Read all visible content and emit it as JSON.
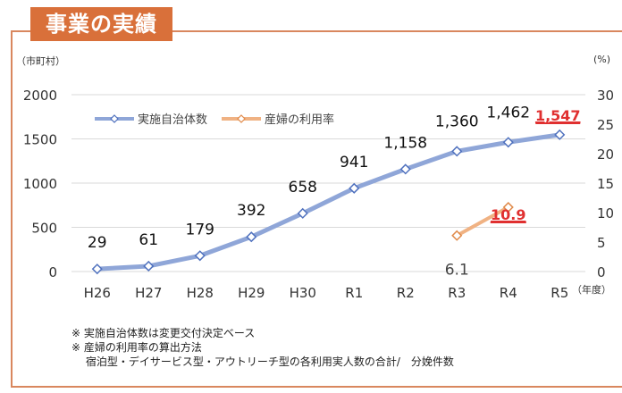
{
  "title": "事業の実績",
  "left_unit": "（市町村）",
  "right_unit": "(%)",
  "x_unit": "（年度）",
  "notes": [
    "※ 実施自治体数は変更交付決定ベース",
    "※ 産婦の利用率の算出方法",
    "　 宿泊型・デイサービス型・アウトリーチ型の各利用実人数の合計/　分娩件数"
  ],
  "colors": {
    "accent": "#d9703a",
    "series1": "#8fa6d8",
    "series2": "#f0b283",
    "highlight": "#e03030",
    "grid": "#d9d9d9"
  },
  "chart_data": {
    "type": "line",
    "title": "事業の実績",
    "categories": [
      "H26",
      "H27",
      "H28",
      "H29",
      "H30",
      "R1",
      "R2",
      "R3",
      "R4",
      "R5"
    ],
    "series": [
      {
        "name": "実施自治体数",
        "axis": "left",
        "values": [
          29,
          61,
          179,
          392,
          658,
          941,
          1158,
          1360,
          1462,
          1547
        ],
        "labels": [
          "29",
          "61",
          "179",
          "392",
          "658",
          "941",
          "1,158",
          "1,360",
          "1,462",
          "1,547"
        ],
        "highlight_index": 9
      },
      {
        "name": "産婦の利用率",
        "axis": "right",
        "values": [
          null,
          null,
          null,
          null,
          null,
          null,
          null,
          6.1,
          10.9,
          null
        ],
        "labels": [
          "",
          "",
          "",
          "",
          "",
          "",
          "",
          "6.1",
          "10.9",
          ""
        ],
        "highlight_index": 8
      }
    ],
    "y_left": {
      "label": "（市町村）",
      "range": [
        0,
        2000
      ],
      "ticks": [
        0,
        500,
        1000,
        1500,
        2000
      ]
    },
    "y_right": {
      "label": "(%)",
      "range": [
        0,
        30
      ],
      "ticks": [
        0,
        5,
        10,
        15,
        20,
        25,
        30
      ]
    },
    "xlabel": "（年度）",
    "grid": true,
    "legend": "top-left"
  }
}
